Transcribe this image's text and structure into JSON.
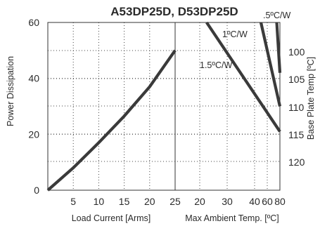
{
  "chart_data": {
    "type": "line",
    "title": "A53DP25D, D53DP25D",
    "grid": true,
    "left_panel": {
      "xlabel": "Load Current  [Arms]",
      "ylabel": "Power Dissipation",
      "xlim": [
        0,
        25
      ],
      "ylim": [
        0,
        60
      ],
      "xticks": [
        "5",
        "10",
        "15",
        "20",
        "25"
      ],
      "yticks": [
        "0",
        "20",
        "40",
        "60"
      ],
      "series": [
        {
          "x": [
            0,
            5,
            10,
            15,
            20,
            25
          ],
          "y": [
            0,
            8,
            17,
            26.5,
            37,
            50
          ]
        }
      ]
    },
    "right_panel": {
      "xlabel": "Max Ambient Temp. [ºC]",
      "y2label": "Base Plate Temp [ºC]",
      "xlim": [
        17.5,
        80
      ],
      "xticks": [
        "20",
        "30",
        "40",
        "60",
        "80"
      ],
      "y2ticks": [
        "100",
        "105",
        "110",
        "115",
        "120"
      ],
      "series": [
        {
          "name": ".5ºC/W",
          "x": [
            75,
            80
          ],
          "y": [
            60,
            42
          ]
        },
        {
          "name": "1ºC/W",
          "x": [
            50,
            80
          ],
          "y": [
            60,
            30
          ]
        },
        {
          "name": "1.5ºC/W",
          "x": [
            22.5,
            80
          ],
          "y": [
            60,
            21
          ]
        }
      ]
    }
  }
}
